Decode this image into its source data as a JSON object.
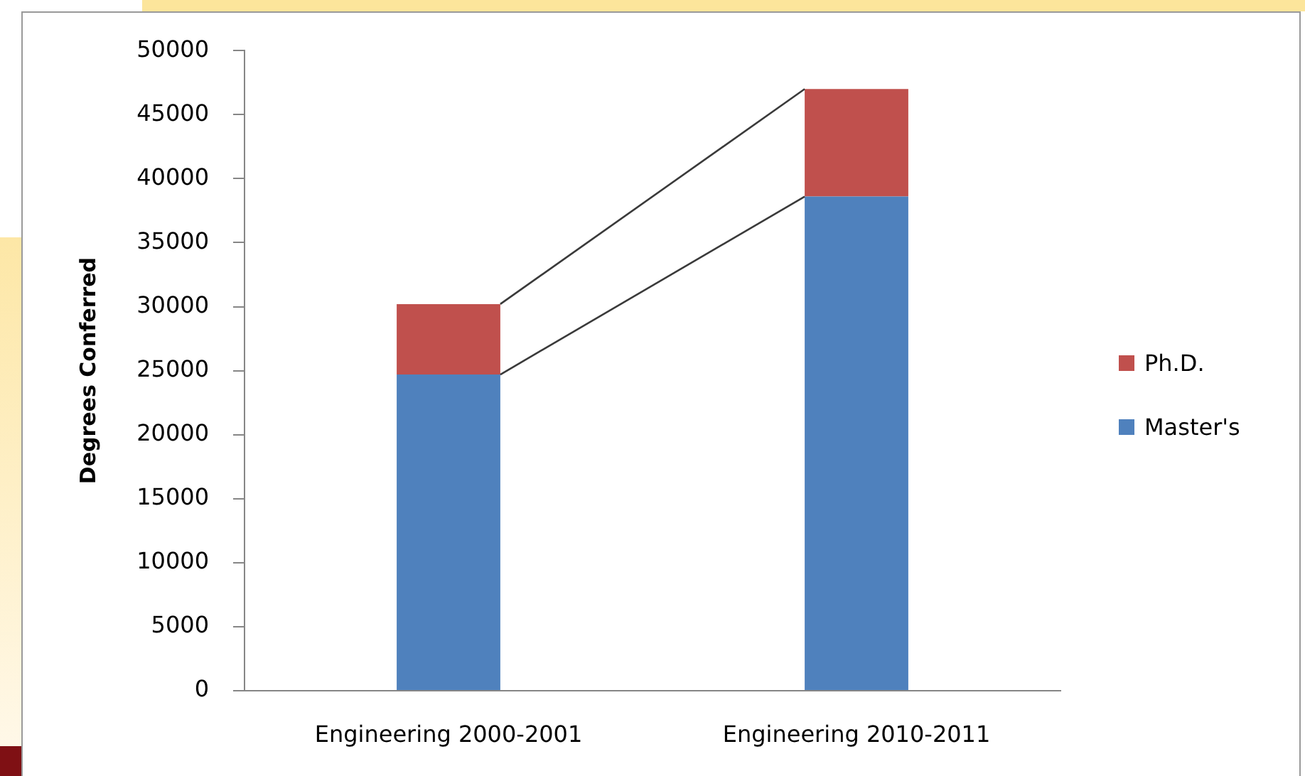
{
  "chart_data": {
    "type": "bar",
    "ylabel": "Degrees Conferred",
    "categories": [
      "Engineering 2000-2001",
      "Engineering 2010-2011"
    ],
    "series": [
      {
        "name": "Master's",
        "color": "#4f81bd",
        "values": [
          24700,
          38600
        ]
      },
      {
        "name": "Ph.D.",
        "color": "#c0504d",
        "values": [
          5500,
          8400
        ]
      }
    ],
    "stacked": true,
    "ylim": [
      0,
      50000
    ],
    "yticks": [
      0,
      5000,
      10000,
      15000,
      20000,
      25000,
      30000,
      35000,
      40000,
      45000,
      50000
    ],
    "grid": false,
    "legend": "right"
  }
}
